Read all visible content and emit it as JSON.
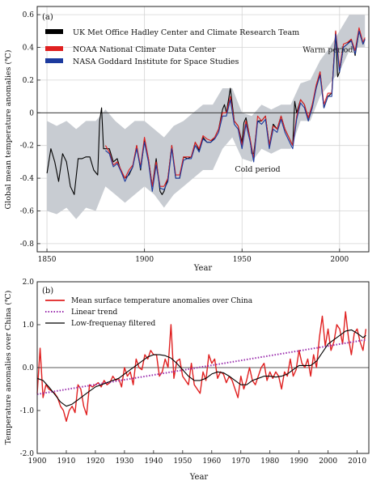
{
  "chart_data": [
    {
      "type": "line",
      "panel_label": "(a)",
      "xlabel": "Year",
      "ylabel": "Global mean temperature anomalies (℃)",
      "xlim": [
        1845,
        2015
      ],
      "ylim": [
        -0.85,
        0.65
      ],
      "xticks": [
        1850,
        1900,
        1950,
        2000
      ],
      "yticks": [
        -0.8,
        -0.6,
        -0.4,
        -0.2,
        0,
        0.2,
        0.4,
        0.6
      ],
      "ytick_labels": [
        "-0.8",
        "-0.6",
        "-0.4",
        "-0.2",
        "0",
        "0.2",
        "0.4",
        "0.6"
      ],
      "grid": true,
      "legend_position": "top-left",
      "annotations": [
        {
          "text": "Warm period",
          "x": 1994,
          "y": 0.37
        },
        {
          "text": "Cold period",
          "x": 1958,
          "y": -0.36
        }
      ],
      "uncertainty_band": {
        "name": "UK Met Office Hadley Center and Climate Research Team",
        "x": [
          1850,
          1855,
          1860,
          1865,
          1870,
          1875,
          1880,
          1885,
          1890,
          1895,
          1900,
          1905,
          1910,
          1915,
          1920,
          1925,
          1930,
          1935,
          1940,
          1945,
          1950,
          1955,
          1960,
          1965,
          1970,
          1975,
          1980,
          1985,
          1990,
          1995,
          2000,
          2005,
          2010,
          2013
        ],
        "lower": [
          -0.6,
          -0.62,
          -0.58,
          -0.65,
          -0.58,
          -0.6,
          -0.45,
          -0.5,
          -0.55,
          -0.5,
          -0.45,
          -0.5,
          -0.58,
          -0.5,
          -0.45,
          -0.4,
          -0.35,
          -0.35,
          -0.22,
          -0.15,
          -0.28,
          -0.3,
          -0.22,
          -0.25,
          -0.22,
          -0.22,
          -0.05,
          -0.05,
          0.1,
          0.18,
          0.25,
          0.38,
          0.4,
          0.4
        ],
        "upper": [
          -0.05,
          -0.08,
          -0.05,
          -0.1,
          -0.05,
          -0.05,
          0.02,
          -0.05,
          -0.1,
          -0.05,
          -0.05,
          -0.1,
          -0.15,
          -0.08,
          -0.05,
          0.0,
          0.05,
          0.05,
          0.15,
          0.15,
          0.0,
          -0.02,
          0.05,
          0.02,
          0.05,
          0.05,
          0.18,
          0.2,
          0.32,
          0.4,
          0.5,
          0.6,
          0.6,
          0.6
        ]
      },
      "series": [
        {
          "name": "UK Met Office Hadley Center and Climate Research Team",
          "color": "#000000",
          "x": [
            1850,
            1852,
            1854,
            1856,
            1858,
            1860,
            1862,
            1864,
            1866,
            1868,
            1870,
            1872,
            1874,
            1876,
            1877,
            1878,
            1879,
            1880,
            1882,
            1884,
            1886,
            1888,
            1890,
            1892,
            1894,
            1896,
            1898,
            1900,
            1902,
            1904,
            1906,
            1908,
            1909,
            1910,
            1912,
            1914,
            1916,
            1918,
            1920,
            1922,
            1924,
            1926,
            1928,
            1930,
            1932,
            1934,
            1936,
            1938,
            1940,
            1941,
            1942,
            1944,
            1945,
            1946,
            1948,
            1950,
            1951,
            1952,
            1954,
            1955,
            1956,
            1958,
            1960,
            1962,
            1964,
            1966,
            1968,
            1970,
            1972,
            1974,
            1976,
            1977,
            1978,
            1980,
            1982,
            1984,
            1986,
            1988,
            1990,
            1992,
            1994,
            1996,
            1998,
            1999,
            2000,
            2002,
            2004,
            2006,
            2008,
            2010,
            2012,
            2013
          ],
          "y": [
            -0.37,
            -0.22,
            -0.3,
            -0.42,
            -0.25,
            -0.3,
            -0.45,
            -0.5,
            -0.28,
            -0.28,
            -0.27,
            -0.27,
            -0.35,
            -0.38,
            -0.05,
            0.03,
            -0.22,
            -0.22,
            -0.22,
            -0.3,
            -0.28,
            -0.36,
            -0.4,
            -0.38,
            -0.33,
            -0.2,
            -0.35,
            -0.17,
            -0.28,
            -0.45,
            -0.28,
            -0.48,
            -0.5,
            -0.48,
            -0.4,
            -0.2,
            -0.4,
            -0.4,
            -0.27,
            -0.28,
            -0.27,
            -0.18,
            -0.23,
            -0.15,
            -0.18,
            -0.18,
            -0.15,
            -0.1,
            0.02,
            0.05,
            0.0,
            0.15,
            0.05,
            -0.05,
            -0.08,
            -0.18,
            -0.06,
            -0.03,
            -0.15,
            -0.25,
            -0.25,
            -0.05,
            -0.05,
            -0.02,
            -0.2,
            -0.07,
            -0.1,
            -0.02,
            -0.1,
            -0.15,
            -0.2,
            0.07,
            0.0,
            0.08,
            0.05,
            -0.05,
            0.05,
            0.15,
            0.25,
            0.03,
            0.1,
            0.12,
            0.5,
            0.22,
            0.25,
            0.4,
            0.42,
            0.45,
            0.35,
            0.5,
            0.42,
            0.45
          ]
        },
        {
          "name": "NOAA National Climate Data Center",
          "color": "#e02020",
          "x": [
            1880,
            1882,
            1884,
            1886,
            1888,
            1890,
            1892,
            1894,
            1896,
            1898,
            1900,
            1902,
            1904,
            1906,
            1908,
            1910,
            1912,
            1914,
            1916,
            1918,
            1920,
            1922,
            1924,
            1926,
            1928,
            1930,
            1932,
            1934,
            1936,
            1938,
            1940,
            1942,
            1944,
            1946,
            1948,
            1950,
            1952,
            1954,
            1956,
            1958,
            1960,
            1962,
            1964,
            1966,
            1968,
            1970,
            1972,
            1974,
            1976,
            1978,
            1980,
            1982,
            1984,
            1986,
            1988,
            1990,
            1992,
            1994,
            1996,
            1998,
            2000,
            2002,
            2004,
            2006,
            2008,
            2010,
            2012,
            2013
          ],
          "y": [
            -0.2,
            -0.24,
            -0.32,
            -0.3,
            -0.35,
            -0.4,
            -0.35,
            -0.32,
            -0.2,
            -0.33,
            -0.15,
            -0.28,
            -0.45,
            -0.3,
            -0.45,
            -0.45,
            -0.4,
            -0.2,
            -0.38,
            -0.38,
            -0.27,
            -0.27,
            -0.27,
            -0.18,
            -0.22,
            -0.14,
            -0.16,
            -0.17,
            -0.15,
            -0.1,
            0.0,
            0.0,
            0.1,
            -0.05,
            -0.08,
            -0.2,
            -0.05,
            -0.15,
            -0.28,
            -0.02,
            -0.05,
            -0.02,
            -0.2,
            -0.08,
            -0.1,
            -0.02,
            -0.1,
            -0.15,
            -0.2,
            -0.02,
            0.08,
            0.05,
            -0.03,
            0.05,
            0.17,
            0.25,
            0.05,
            0.12,
            0.12,
            0.5,
            0.27,
            0.42,
            0.43,
            0.45,
            0.38,
            0.52,
            0.43,
            0.46
          ]
        },
        {
          "name": "NASA Goddard Institute for Space Studies",
          "color": "#1c3a9e",
          "x": [
            1880,
            1882,
            1884,
            1886,
            1888,
            1890,
            1892,
            1894,
            1896,
            1898,
            1900,
            1902,
            1904,
            1906,
            1908,
            1910,
            1912,
            1914,
            1916,
            1918,
            1920,
            1922,
            1924,
            1926,
            1928,
            1930,
            1932,
            1934,
            1936,
            1938,
            1940,
            1942,
            1944,
            1946,
            1948,
            1950,
            1952,
            1954,
            1956,
            1958,
            1960,
            1962,
            1964,
            1966,
            1968,
            1970,
            1972,
            1974,
            1976,
            1978,
            1980,
            1982,
            1984,
            1986,
            1988,
            1990,
            1992,
            1994,
            1996,
            1998,
            2000,
            2002,
            2004,
            2006,
            2008,
            2010,
            2012,
            2013
          ],
          "y": [
            -0.23,
            -0.25,
            -0.33,
            -0.31,
            -0.36,
            -0.42,
            -0.37,
            -0.33,
            -0.22,
            -0.34,
            -0.18,
            -0.3,
            -0.48,
            -0.32,
            -0.46,
            -0.47,
            -0.42,
            -0.22,
            -0.4,
            -0.4,
            -0.29,
            -0.28,
            -0.28,
            -0.2,
            -0.24,
            -0.16,
            -0.18,
            -0.18,
            -0.16,
            -0.12,
            -0.02,
            -0.02,
            0.08,
            -0.07,
            -0.1,
            -0.22,
            -0.07,
            -0.17,
            -0.3,
            -0.05,
            -0.07,
            -0.04,
            -0.22,
            -0.1,
            -0.12,
            -0.04,
            -0.12,
            -0.17,
            -0.22,
            -0.04,
            0.06,
            0.03,
            -0.05,
            0.03,
            0.15,
            0.23,
            0.03,
            0.1,
            0.1,
            0.48,
            0.25,
            0.4,
            0.42,
            0.44,
            0.36,
            0.5,
            0.42,
            0.45
          ]
        }
      ]
    },
    {
      "type": "line",
      "panel_label": "(b)",
      "xlabel": "Year",
      "ylabel": "Temperature anomalies over China (℃)",
      "xlim": [
        1900,
        2014
      ],
      "ylim": [
        -2.0,
        2.0
      ],
      "xticks": [
        1900,
        1910,
        1920,
        1930,
        1940,
        1950,
        1960,
        1970,
        1980,
        1990,
        2000,
        2010
      ],
      "yticks": [
        -2.0,
        -1.0,
        0.0,
        1.0,
        2.0
      ],
      "ytick_labels": [
        "-2.0",
        "-1.0",
        "0.0",
        "1.0",
        "2.0"
      ],
      "grid": false,
      "legend_position": "top-left",
      "series": [
        {
          "name": "Mean surface temperature anomalies over China",
          "color": "#e02020",
          "x": [
            1900,
            1901,
            1902,
            1903,
            1904,
            1905,
            1906,
            1907,
            1908,
            1909,
            1910,
            1911,
            1912,
            1913,
            1914,
            1915,
            1916,
            1917,
            1918,
            1919,
            1920,
            1921,
            1922,
            1923,
            1924,
            1925,
            1926,
            1927,
            1928,
            1929,
            1930,
            1931,
            1932,
            1933,
            1934,
            1935,
            1936,
            1937,
            1938,
            1939,
            1940,
            1941,
            1942,
            1943,
            1944,
            1945,
            1946,
            1947,
            1948,
            1949,
            1950,
            1951,
            1952,
            1953,
            1954,
            1955,
            1956,
            1957,
            1958,
            1959,
            1960,
            1961,
            1962,
            1963,
            1964,
            1965,
            1966,
            1967,
            1968,
            1969,
            1970,
            1971,
            1972,
            1973,
            1974,
            1975,
            1976,
            1977,
            1978,
            1979,
            1980,
            1981,
            1982,
            1983,
            1984,
            1985,
            1986,
            1987,
            1988,
            1989,
            1990,
            1991,
            1992,
            1993,
            1994,
            1995,
            1996,
            1997,
            1998,
            1999,
            2000,
            2001,
            2002,
            2003,
            2004,
            2005,
            2006,
            2007,
            2008,
            2009,
            2010,
            2011,
            2012,
            2013
          ],
          "y": [
            -0.6,
            0.45,
            -0.7,
            -0.4,
            -0.5,
            -0.55,
            -0.6,
            -0.7,
            -0.9,
            -1.0,
            -1.25,
            -1.0,
            -0.9,
            -1.05,
            -0.4,
            -0.5,
            -0.9,
            -1.1,
            -0.4,
            -0.45,
            -0.4,
            -0.35,
            -0.45,
            -0.3,
            -0.4,
            -0.35,
            -0.2,
            -0.3,
            -0.25,
            -0.45,
            0.0,
            -0.2,
            -0.1,
            -0.4,
            0.2,
            0.0,
            -0.05,
            0.3,
            0.2,
            0.4,
            0.3,
            0.3,
            -0.2,
            -0.1,
            0.2,
            0.0,
            1.0,
            -0.25,
            0.15,
            0.2,
            -0.2,
            -0.3,
            -0.4,
            0.1,
            -0.4,
            -0.5,
            -0.6,
            -0.1,
            -0.3,
            0.3,
            0.1,
            0.2,
            -0.25,
            -0.1,
            -0.15,
            -0.35,
            -0.2,
            -0.3,
            -0.5,
            -0.7,
            -0.2,
            -0.5,
            -0.3,
            0.0,
            -0.3,
            -0.4,
            -0.2,
            0.0,
            0.1,
            -0.3,
            -0.1,
            -0.25,
            -0.1,
            -0.2,
            -0.5,
            -0.1,
            -0.2,
            0.2,
            -0.2,
            -0.05,
            0.4,
            0.1,
            0.0,
            0.2,
            -0.2,
            0.3,
            0.0,
            0.7,
            1.2,
            0.5,
            0.9,
            0.4,
            0.6,
            1.0,
            0.9,
            0.55,
            1.3,
            0.7,
            0.3,
            0.8,
            0.9,
            0.6,
            0.4,
            0.9
          ]
        },
        {
          "name": "Linear trend",
          "color": "#9b2fae",
          "x": [
            1900,
            2013
          ],
          "y": [
            -0.62,
            0.65
          ]
        },
        {
          "name": "Low-frequenay filtered",
          "color": "#000000",
          "x": [
            1900,
            1902,
            1904,
            1906,
            1908,
            1910,
            1912,
            1914,
            1916,
            1918,
            1920,
            1922,
            1924,
            1926,
            1928,
            1930,
            1932,
            1934,
            1936,
            1938,
            1940,
            1942,
            1944,
            1946,
            1948,
            1950,
            1952,
            1954,
            1956,
            1958,
            1960,
            1962,
            1964,
            1966,
            1968,
            1970,
            1972,
            1974,
            1976,
            1978,
            1980,
            1982,
            1984,
            1986,
            1988,
            1990,
            1992,
            1994,
            1996,
            1998,
            2000,
            2002,
            2004,
            2006,
            2008,
            2010,
            2012,
            2013
          ],
          "y": [
            -0.25,
            -0.3,
            -0.45,
            -0.62,
            -0.8,
            -0.9,
            -0.85,
            -0.75,
            -0.65,
            -0.55,
            -0.45,
            -0.4,
            -0.35,
            -0.3,
            -0.25,
            -0.15,
            -0.05,
            0.05,
            0.15,
            0.25,
            0.3,
            0.3,
            0.28,
            0.22,
            0.1,
            -0.05,
            -0.2,
            -0.3,
            -0.3,
            -0.25,
            -0.15,
            -0.1,
            -0.12,
            -0.2,
            -0.3,
            -0.4,
            -0.4,
            -0.3,
            -0.25,
            -0.2,
            -0.2,
            -0.22,
            -0.2,
            -0.15,
            -0.05,
            0.05,
            0.05,
            0.05,
            0.15,
            0.35,
            0.55,
            0.65,
            0.75,
            0.85,
            0.88,
            0.8,
            0.7,
            0.75
          ]
        }
      ]
    }
  ]
}
